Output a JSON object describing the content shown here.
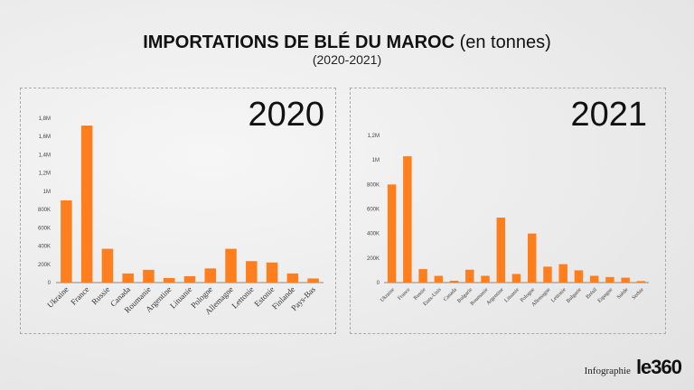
{
  "header": {
    "title": "IMPORTATIONS DE BLÉ DU MAROC",
    "title_suffix": "(en tonnes)",
    "subtitle": "(2020-2021)"
  },
  "footer": {
    "label": "Infographie",
    "logo": "le360"
  },
  "colors": {
    "bar": "#ff7f1e"
  },
  "chart_data": [
    {
      "type": "bar",
      "title": "2020",
      "ylim": [
        0,
        1800000
      ],
      "yticks": [
        0,
        200000,
        400000,
        600000,
        800000,
        1000000,
        1200000,
        1400000,
        1600000,
        1800000
      ],
      "ytick_labels": [
        "0",
        "200K",
        "400K",
        "600K",
        "800K",
        "1M",
        "1,2M",
        "1,4M",
        "1,6M",
        "1,8M"
      ],
      "categories": [
        "Ukraine",
        "France",
        "Russie",
        "Canada",
        "Roumanie",
        "Argentine",
        "Lituanie",
        "Pologne",
        "Allemagne",
        "Lettonie",
        "Estonie",
        "Finlande",
        "Pays-Bas"
      ],
      "values": [
        900000,
        1720000,
        370000,
        100000,
        140000,
        50000,
        70000,
        155000,
        370000,
        235000,
        220000,
        100000,
        45000
      ]
    },
    {
      "type": "bar",
      "title": "2021",
      "ylim": [
        0,
        1200000
      ],
      "yticks": [
        0,
        200000,
        400000,
        600000,
        800000,
        1000000,
        1200000
      ],
      "ytick_labels": [
        "0",
        "200K",
        "400K",
        "600K",
        "800K",
        "1M",
        "1,2M"
      ],
      "categories": [
        "Ukraine",
        "France",
        "Russie",
        "Etats-Unis",
        "Canada",
        "Bulgarie",
        "Roumanie",
        "Argentine",
        "Lituanie",
        "Pologne",
        "Allemagne",
        "Lettonie",
        "Bulgarie",
        "Brésil",
        "Espagne",
        "Suède",
        "Serbie"
      ],
      "values": [
        800000,
        1030000,
        110000,
        55000,
        15000,
        105000,
        55000,
        530000,
        70000,
        400000,
        130000,
        150000,
        100000,
        55000,
        45000,
        40000,
        12000
      ]
    }
  ]
}
